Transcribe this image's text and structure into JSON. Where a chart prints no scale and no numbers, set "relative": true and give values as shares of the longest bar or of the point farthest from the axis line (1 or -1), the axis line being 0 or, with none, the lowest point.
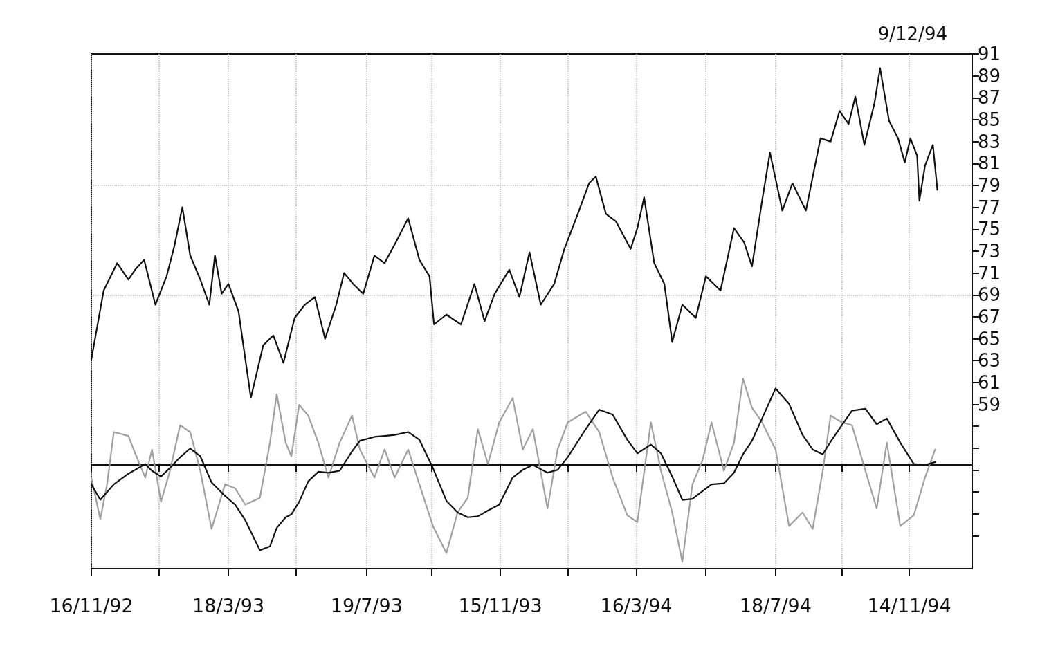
{
  "chart_data": [
    {
      "type": "line",
      "annotations": [
        "9/12/94"
      ],
      "tick_labels": "y",
      "grid": "x",
      "marker": "none",
      "line_style": "solid",
      "xlim": [
        "1992-11-16",
        "1995-01-09"
      ],
      "xticks": [
        {
          "value": "1992-11-16",
          "label": null
        },
        {
          "value": "1993-01-15",
          "label": null
        },
        {
          "value": "1993-03-18",
          "label": null
        },
        {
          "value": "1993-05-17",
          "label": null
        },
        {
          "value": "1993-07-19",
          "label": null
        },
        {
          "value": "1993-09-15",
          "label": null
        },
        {
          "value": "1993-11-15",
          "label": null
        },
        {
          "value": "1994-01-14",
          "label": null
        },
        {
          "value": "1994-03-16",
          "label": null
        },
        {
          "value": "1994-05-17",
          "label": null
        },
        {
          "value": "1994-07-18",
          "label": null
        },
        {
          "value": "1994-09-15",
          "label": null
        },
        {
          "value": "1994-11-14",
          "label": null
        }
      ],
      "ylim": [
        44,
        91
      ],
      "yticks": [
        {
          "value": 47,
          "label": null
        },
        {
          "value": 49,
          "label": null
        },
        {
          "value": 51,
          "label": null
        },
        {
          "value": 53,
          "label": null
        },
        {
          "value": 55,
          "label": null
        },
        {
          "value": 57,
          "label": null
        },
        59,
        61,
        63,
        65,
        67,
        69,
        71,
        73,
        75,
        77,
        79,
        81,
        83,
        85,
        87,
        89,
        91
      ],
      "ref_lines": [
        {
          "axis": "y",
          "value": 69,
          "color": "#bbbbbb",
          "line_style": "dotted"
        },
        {
          "axis": "y",
          "value": 79,
          "color": "#bbbbbb",
          "line_style": "dotted"
        }
      ],
      "x": [
        "1992-11-16",
        "1992-11-27",
        "1992-12-09",
        "1992-12-19",
        "1992-12-25",
        "1993-01-02",
        "1993-01-12",
        "1993-01-22",
        "1993-01-29",
        "1993-02-05",
        "1993-02-12",
        "1993-02-21",
        "1993-03-01",
        "1993-03-06",
        "1993-03-12",
        "1993-03-18",
        "1993-03-27",
        "1993-04-07",
        "1993-04-18",
        "1993-04-27",
        "1993-05-06",
        "1993-05-16",
        "1993-05-25",
        "1993-06-03",
        "1993-06-12",
        "1993-06-22",
        "1993-06-29",
        "1993-07-07",
        "1993-07-16",
        "1993-07-26",
        "1993-08-04",
        "1993-08-14",
        "1993-08-25",
        "1993-09-04",
        "1993-09-13",
        "1993-09-17",
        "1993-09-28",
        "1993-10-11",
        "1993-10-23",
        "1993-11-01",
        "1993-11-10",
        "1993-11-23",
        "1993-12-02",
        "1993-12-11",
        "1993-12-21",
        "1994-01-02",
        "1994-01-11",
        "1994-01-23",
        "1994-02-02",
        "1994-02-08",
        "1994-02-17",
        "1994-02-26",
        "1994-03-11",
        "1994-03-17",
        "1994-03-23",
        "1994-04-01",
        "1994-04-10",
        "1994-04-17",
        "1994-04-26",
        "1994-05-08",
        "1994-05-17",
        "1994-05-30",
        "1994-06-11",
        "1994-06-20",
        "1994-06-27",
        "1994-07-06",
        "1994-07-13",
        "1994-07-24",
        "1994-08-02",
        "1994-08-14",
        "1994-08-27",
        "1994-09-05",
        "1994-09-13",
        "1994-09-21",
        "1994-09-27",
        "1994-10-05",
        "1994-10-14",
        "1994-10-19",
        "1994-10-27",
        "1994-11-04",
        "1994-11-10",
        "1994-11-15",
        "1994-11-21",
        "1994-11-23",
        "1994-11-28",
        "1994-12-05",
        "1994-12-09"
      ],
      "series": [
        {
          "color": "#111111",
          "values": [
            63.1,
            69.4,
            71.9,
            70.4,
            71.3,
            72.2,
            68.1,
            70.7,
            73.5,
            77.0,
            72.6,
            70.4,
            68.1,
            72.6,
            69.1,
            70.0,
            67.5,
            59.6,
            64.4,
            65.3,
            62.8,
            66.9,
            68.1,
            68.8,
            65.0,
            68.1,
            71.0,
            70.0,
            69.1,
            72.6,
            71.9,
            73.8,
            76.0,
            72.2,
            70.7,
            66.3,
            67.2,
            66.3,
            70.0,
            66.6,
            69.1,
            71.3,
            68.8,
            72.9,
            68.1,
            70.0,
            73.2,
            76.4,
            79.2,
            79.8,
            76.4,
            75.7,
            73.2,
            75.1,
            77.9,
            71.9,
            70.0,
            64.7,
            68.1,
            66.9,
            70.7,
            69.4,
            75.1,
            73.8,
            71.6,
            77.6,
            82.0,
            76.7,
            79.2,
            76.7,
            83.3,
            83.0,
            85.8,
            84.6,
            87.1,
            82.7,
            86.5,
            89.7,
            84.9,
            83.3,
            81.1,
            83.3,
            81.7,
            77.6,
            80.8,
            82.7,
            78.6
          ]
        }
      ]
    },
    {
      "type": "line",
      "relative": true,
      "tick_labels": "x",
      "marker": "none",
      "line_style": "solid",
      "xlim": [
        "1992-11-16",
        "1995-01-09"
      ],
      "xticks": [
        {
          "value": "1992-11-16",
          "label": "16/11/92"
        },
        {
          "value": "1993-01-15",
          "label": null
        },
        {
          "value": "1993-03-18",
          "label": "18/3/93"
        },
        {
          "value": "1993-05-17",
          "label": null
        },
        {
          "value": "1993-07-19",
          "label": "19/7/93"
        },
        {
          "value": "1993-09-15",
          "label": null
        },
        {
          "value": "1993-11-15",
          "label": "15/11/93"
        },
        {
          "value": "1994-01-14",
          "label": null
        },
        {
          "value": "1994-03-16",
          "label": "16/3/94"
        },
        {
          "value": "1994-05-17",
          "label": null
        },
        {
          "value": "1994-07-18",
          "label": "18/7/94"
        },
        {
          "value": "1994-09-15",
          "label": null
        },
        {
          "value": "1994-11-14",
          "label": "14/11/94"
        }
      ],
      "ref_lines": [
        {
          "axis": "y",
          "value": 0,
          "color": "#111111",
          "line_style": "solid"
        }
      ],
      "x": [
        "1992-11-16",
        "1992-11-24",
        "1992-11-30",
        "1992-12-06",
        "1992-12-19",
        "1992-12-25",
        "1993-01-03",
        "1993-01-09",
        "1993-01-17",
        "1993-01-25",
        "1993-02-03",
        "1993-02-12",
        "1993-02-21",
        "1993-03-03",
        "1993-03-15",
        "1993-03-24",
        "1993-04-02",
        "1993-04-15",
        "1993-04-24",
        "1993-04-30",
        "1993-05-08",
        "1993-05-13",
        "1993-05-20",
        "1993-05-28",
        "1993-06-06",
        "1993-06-15",
        "1993-06-25",
        "1993-07-06",
        "1993-07-13",
        "1993-07-26",
        "1993-08-04",
        "1993-08-13",
        "1993-08-25",
        "1993-09-04",
        "1993-09-16",
        "1993-09-28",
        "1993-10-08",
        "1993-10-17",
        "1993-10-26",
        "1993-11-04",
        "1993-11-14",
        "1993-11-26",
        "1993-12-05",
        "1993-12-14",
        "1993-12-27",
        "1994-01-05",
        "1994-01-14",
        "1994-01-30",
        "1994-02-11",
        "1994-02-23",
        "1994-03-08",
        "1994-03-17",
        "1994-03-29",
        "1994-04-07",
        "1994-04-17",
        "1994-04-26",
        "1994-05-05",
        "1994-05-14",
        "1994-05-22",
        "1994-06-02",
        "1994-06-11",
        "1994-06-19",
        "1994-06-27",
        "1994-07-06",
        "1994-07-18",
        "1994-07-30",
        "1994-08-11",
        "1994-08-20",
        "1994-08-29",
        "1994-09-05",
        "1994-09-15",
        "1994-09-24",
        "1994-10-06",
        "1994-10-16",
        "1994-10-25",
        "1994-11-06",
        "1994-11-18",
        "1994-11-28",
        "1994-12-07"
      ],
      "series": [
        {
          "color": "#a0a0a0",
          "values": [
            -0.13,
            -0.56,
            -0.2,
            0.34,
            0.3,
            0.12,
            -0.13,
            0.16,
            -0.38,
            -0.06,
            0.41,
            0.34,
            -0.06,
            -0.66,
            -0.2,
            -0.24,
            -0.41,
            -0.34,
            0.23,
            0.73,
            0.23,
            0.09,
            0.62,
            0.51,
            0.23,
            -0.13,
            0.23,
            0.51,
            0.16,
            -0.13,
            0.16,
            -0.13,
            0.16,
            -0.2,
            -0.63,
            -0.91,
            -0.49,
            -0.34,
            0.37,
            0.01,
            0.44,
            0.69,
            0.16,
            0.37,
            -0.45,
            0.16,
            0.44,
            0.55,
            0.34,
            -0.13,
            -0.52,
            -0.59,
            0.44,
            -0.06,
            -0.49,
            -1,
            -0.2,
            0.05,
            0.44,
            -0.06,
            0.23,
            0.89,
            0.59,
            0.44,
            0.16,
            -0.63,
            -0.49,
            -0.66,
            -0.06,
            0.51,
            0.44,
            0.41,
            -0.06,
            -0.45,
            0.23,
            -0.63,
            -0.52,
            -0.13,
            0.16
          ]
        },
        {
          "color": "#111111",
          "values": [
            -0.2,
            -0.36,
            -0.28,
            -0.2,
            -0.09,
            -0.05,
            0.01,
            -0.06,
            -0.12,
            -0.03,
            0.08,
            0.17,
            0.09,
            -0.18,
            -0.32,
            -0.41,
            -0.57,
            -0.88,
            -0.84,
            -0.65,
            -0.54,
            -0.51,
            -0.38,
            -0.17,
            -0.07,
            -0.08,
            -0.06,
            0.14,
            0.25,
            0.29,
            0.3,
            0.31,
            0.34,
            0.26,
            -0.03,
            -0.37,
            -0.49,
            -0.54,
            -0.53,
            -0.47,
            -0.41,
            -0.13,
            -0.05,
            0,
            -0.08,
            -0.05,
            0.08,
            0.37,
            0.57,
            0.52,
            0.26,
            0.12,
            0.21,
            0.12,
            -0.12,
            -0.36,
            -0.35,
            -0.27,
            -0.2,
            -0.19,
            -0.08,
            0.11,
            0.25,
            0.48,
            0.79,
            0.63,
            0.31,
            0.16,
            0.11,
            0.24,
            0.41,
            0.56,
            0.58,
            0.42,
            0.48,
            0.23,
            0.01,
            0,
            0.03
          ]
        }
      ]
    }
  ]
}
